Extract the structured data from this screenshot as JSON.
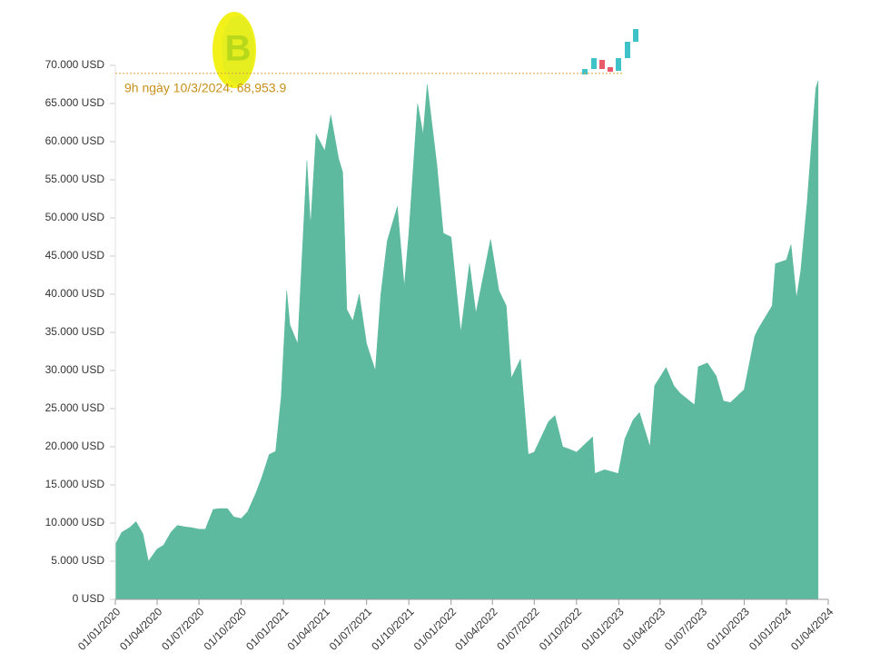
{
  "chart_data": {
    "type": "area",
    "color": "#5dba9e",
    "annotation": {
      "text": "9h ngày 10/3/2024: 68,953.9",
      "value": 68953.9,
      "color": "#d9a441"
    },
    "x": [
      "01/01/2020",
      "15/01/2020",
      "01/02/2020",
      "15/02/2020",
      "01/03/2020",
      "13/03/2020",
      "01/04/2020",
      "15/04/2020",
      "01/05/2020",
      "15/05/2020",
      "01/06/2020",
      "15/06/2020",
      "01/07/2020",
      "15/07/2020",
      "01/08/2020",
      "15/08/2020",
      "01/09/2020",
      "15/09/2020",
      "01/10/2020",
      "15/10/2020",
      "01/11/2020",
      "15/11/2020",
      "01/12/2020",
      "15/12/2020",
      "27/12/2020",
      "08/01/2021",
      "15/01/2021",
      "01/02/2021",
      "21/02/2021",
      "01/03/2021",
      "13/03/2021",
      "01/04/2021",
      "14/04/2021",
      "01/05/2021",
      "10/05/2021",
      "19/05/2021",
      "01/06/2021",
      "15/06/2021",
      "01/07/2021",
      "20/07/2021",
      "01/08/2021",
      "15/08/2021",
      "06/09/2021",
      "21/09/2021",
      "01/10/2021",
      "20/10/2021",
      "01/11/2021",
      "10/11/2021",
      "01/12/2021",
      "15/12/2021",
      "01/01/2022",
      "22/01/2022",
      "10/02/2022",
      "24/02/2022",
      "28/03/2022",
      "15/04/2022",
      "01/05/2022",
      "12/05/2022",
      "01/06/2022",
      "18/06/2022",
      "01/07/2022",
      "01/08/2022",
      "15/08/2022",
      "01/09/2022",
      "15/09/2022",
      "01/10/2022",
      "05/11/2022",
      "10/11/2022",
      "01/12/2022",
      "31/12/2022",
      "14/01/2023",
      "01/02/2023",
      "15/02/2023",
      "10/03/2023",
      "20/03/2023",
      "14/04/2023",
      "01/05/2023",
      "15/05/2023",
      "15/06/2023",
      "23/06/2023",
      "13/07/2023",
      "01/08/2023",
      "17/08/2023",
      "01/09/2023",
      "01/10/2023",
      "24/10/2023",
      "01/11/2023",
      "01/12/2023",
      "08/12/2023",
      "01/01/2024",
      "11/01/2024",
      "23/01/2024",
      "01/02/2024",
      "15/02/2024",
      "28/02/2024",
      "05/03/2024",
      "10/03/2024"
    ],
    "values": [
      7200,
      8800,
      9400,
      10200,
      8600,
      5000,
      6600,
      7100,
      8800,
      9700,
      9500,
      9400,
      9200,
      9200,
      11800,
      11900,
      11900,
      10800,
      10600,
      11500,
      13800,
      16000,
      19000,
      19400,
      26500,
      40500,
      36000,
      33500,
      57500,
      49000,
      61000,
      58800,
      63500,
      57800,
      56000,
      38000,
      36500,
      40000,
      33500,
      30000,
      40000,
      47000,
      51500,
      41000,
      48000,
      65000,
      61000,
      67500,
      57000,
      48000,
      47500,
      35000,
      44000,
      37500,
      47200,
      40500,
      38500,
      29000,
      31500,
      19000,
      19300,
      23300,
      24100,
      20000,
      19700,
      19300,
      21300,
      16500,
      17000,
      16500,
      21000,
      23500,
      24500,
      20000,
      28000,
      30400,
      28000,
      27000,
      25500,
      30500,
      31000,
      29300,
      26000,
      25800,
      27500,
      34500,
      35500,
      38500,
      44000,
      44500,
      46500,
      39500,
      43000,
      52000,
      62500,
      67000,
      68000
    ],
    "xlim": [
      "01/01/2020",
      "01/04/2024"
    ],
    "xticks": [
      "01/01/2020",
      "01/04/2020",
      "01/07/2020",
      "01/10/2020",
      "01/01/2021",
      "01/04/2021",
      "01/07/2021",
      "01/10/2021",
      "01/01/2022",
      "01/04/2022",
      "01/07/2022",
      "01/10/2022",
      "01/01/2023",
      "01/04/2023",
      "01/07/2023",
      "01/10/2023",
      "01/01/2024",
      "01/04/2024"
    ],
    "ylim": [
      0,
      70000
    ],
    "yticks": [
      {
        "value": 0,
        "label": "0 USD"
      },
      {
        "value": 5000,
        "label": "5.000 USD"
      },
      {
        "value": 10000,
        "label": "10.000 USD"
      },
      {
        "value": 15000,
        "label": "15.000 USD"
      },
      {
        "value": 20000,
        "label": "20.000 USD"
      },
      {
        "value": 25000,
        "label": "25.000 USD"
      },
      {
        "value": 30000,
        "label": "30.000 USD"
      },
      {
        "value": 35000,
        "label": "35.000 USD"
      },
      {
        "value": 40000,
        "label": "40.000 USD"
      },
      {
        "value": 45000,
        "label": "45.000 USD"
      },
      {
        "value": 50000,
        "label": "50.000 USD"
      },
      {
        "value": 55000,
        "label": "55.000 USD"
      },
      {
        "value": 60000,
        "label": "60.000 USD"
      },
      {
        "value": 65000,
        "label": "65.000 USD"
      },
      {
        "value": 70000,
        "label": "70.000 USD"
      }
    ]
  }
}
